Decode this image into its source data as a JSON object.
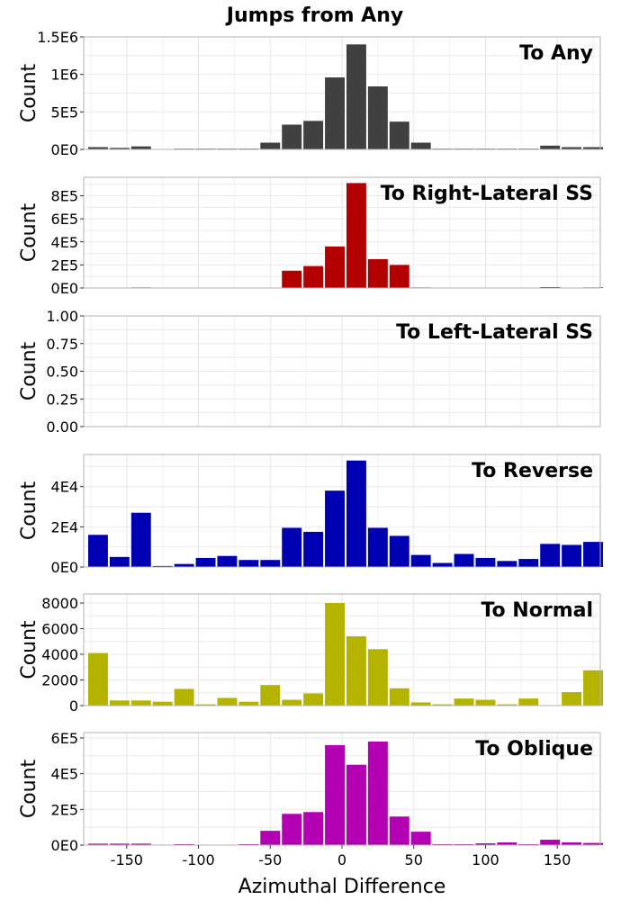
{
  "figure": {
    "title": "Jumps from Any",
    "xlabel": "Azimuthal Difference",
    "ylabel": "Count",
    "xlim": [
      -180,
      180
    ],
    "xticks": [
      -150,
      -100,
      -50,
      0,
      50,
      100,
      150
    ],
    "xtick_labels": [
      "-150",
      "-100",
      "-50",
      "0",
      "50",
      "100",
      "150"
    ]
  },
  "chart_data": [
    {
      "type": "bar",
      "label": "To Any",
      "color": "#404040",
      "x": [
        -170,
        -155,
        -140,
        -125,
        -110,
        -95,
        -80,
        -65,
        -50,
        -35,
        -20,
        -5,
        10,
        25,
        40,
        55,
        70,
        85,
        100,
        115,
        130,
        145,
        160,
        175
      ],
      "values": [
        30000,
        20000,
        40000,
        5000,
        10000,
        10000,
        10000,
        10000,
        90000,
        330000,
        380000,
        960000,
        1400000,
        840000,
        370000,
        90000,
        10000,
        10000,
        10000,
        10000,
        10000,
        50000,
        30000,
        30000
      ],
      "ylim": [
        0,
        1500000
      ],
      "yticks": [
        0,
        500000,
        1000000,
        1500000
      ],
      "ytick_labels": [
        "0E0",
        "5E5",
        "1E6",
        "1.5E6"
      ],
      "ylabel": "Count"
    },
    {
      "type": "bar",
      "label": "To Right-Lateral SS",
      "color": "#b30000",
      "x": [
        -170,
        -155,
        -140,
        -125,
        -110,
        -95,
        -80,
        -65,
        -50,
        -35,
        -20,
        -5,
        10,
        25,
        40,
        55,
        70,
        85,
        100,
        115,
        130,
        145,
        160,
        175
      ],
      "values": [
        3000,
        3000,
        5000,
        1000,
        3000,
        3000,
        2000,
        2000,
        2000,
        150000,
        190000,
        360000,
        910000,
        250000,
        200000,
        5000,
        2000,
        2000,
        2000,
        2000,
        2000,
        8000,
        3000,
        5000
      ],
      "ylim": [
        0,
        960000
      ],
      "yticks": [
        0,
        200000,
        400000,
        600000,
        800000
      ],
      "ytick_labels": [
        "0E0",
        "2E5",
        "4E5",
        "6E5",
        "8E5"
      ],
      "ylabel": "Count"
    },
    {
      "type": "bar",
      "label": "To Left-Lateral SS",
      "color": "#888888",
      "x": [],
      "values": [],
      "ylim": [
        0,
        1
      ],
      "yticks": [
        0,
        0.25,
        0.5,
        0.75,
        1.0
      ],
      "ytick_labels": [
        "0.00",
        "0.25",
        "0.50",
        "0.75",
        "1.00"
      ],
      "ylabel": "Count"
    },
    {
      "type": "bar",
      "label": "To Reverse",
      "color": "#0000b3",
      "x": [
        -170,
        -155,
        -140,
        -125,
        -110,
        -95,
        -80,
        -65,
        -50,
        -35,
        -20,
        -5,
        10,
        25,
        40,
        55,
        70,
        85,
        100,
        115,
        130,
        145,
        160,
        175
      ],
      "values": [
        16000,
        5000,
        27000,
        500,
        1500,
        4500,
        5500,
        3500,
        3500,
        19500,
        17500,
        38000,
        53000,
        19500,
        15500,
        6000,
        2000,
        6500,
        4500,
        3000,
        4000,
        11500,
        11000,
        12500
      ],
      "ylim": [
        0,
        56000
      ],
      "yticks": [
        0,
        20000,
        40000
      ],
      "ytick_labels": [
        "0E0",
        "2E4",
        "4E4"
      ],
      "ylabel": "Count"
    },
    {
      "type": "bar",
      "label": "To Normal",
      "color": "#b3b300",
      "x": [
        -170,
        -155,
        -140,
        -125,
        -110,
        -95,
        -80,
        -65,
        -50,
        -35,
        -20,
        -5,
        10,
        25,
        40,
        55,
        70,
        85,
        100,
        115,
        130,
        145,
        160,
        175
      ],
      "values": [
        4100,
        400,
        400,
        300,
        1300,
        100,
        600,
        300,
        1600,
        450,
        950,
        8000,
        5400,
        4400,
        1350,
        250,
        100,
        550,
        450,
        100,
        550,
        0,
        1050,
        2750
      ],
      "ylim": [
        0,
        8700
      ],
      "yticks": [
        0,
        2000,
        4000,
        6000,
        8000
      ],
      "ytick_labels": [
        "0",
        "2000",
        "4000",
        "6000",
        "8000"
      ],
      "ylabel": "Count"
    },
    {
      "type": "bar",
      "label": "To Oblique",
      "color": "#b300b3",
      "x": [
        -170,
        -155,
        -140,
        -125,
        -110,
        -95,
        -80,
        -65,
        -50,
        -35,
        -20,
        -5,
        10,
        25,
        40,
        55,
        70,
        85,
        100,
        115,
        130,
        145,
        160,
        175
      ],
      "values": [
        8000,
        8000,
        8000,
        2000,
        5000,
        2000,
        2000,
        5000,
        80000,
        175000,
        185000,
        560000,
        450000,
        580000,
        160000,
        75000,
        5000,
        5000,
        10000,
        15000,
        5000,
        30000,
        15000,
        12000
      ],
      "ylim": [
        0,
        630000
      ],
      "yticks": [
        0,
        200000,
        400000,
        600000
      ],
      "ytick_labels": [
        "0E0",
        "2E5",
        "4E5",
        "6E5"
      ],
      "ylabel": "Count"
    }
  ]
}
